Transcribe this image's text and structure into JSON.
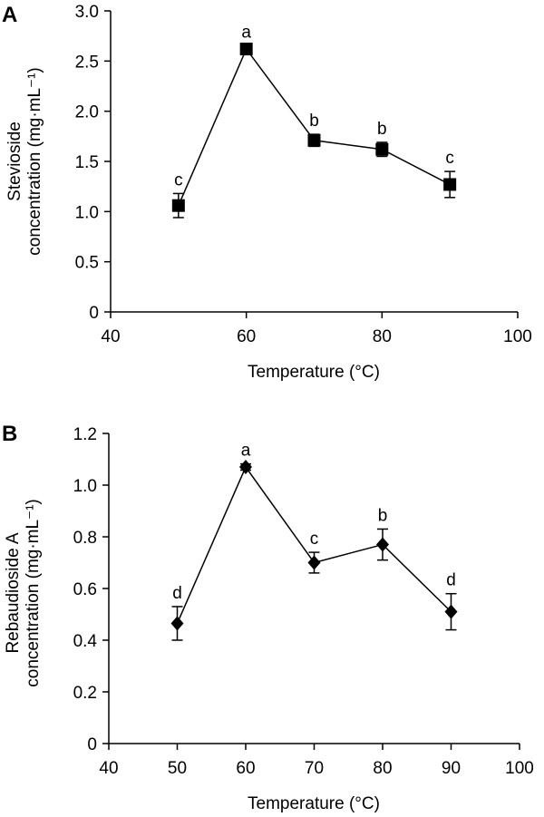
{
  "chart_data": [
    {
      "panel": "A",
      "type": "line",
      "marker": "square",
      "xlabel": "Temperature (°C)",
      "ylabel_lines": [
        "Stevioside",
        "concentration (mg·mL⁻¹)"
      ],
      "xlim": [
        40,
        100
      ],
      "ylim": [
        0,
        3.0
      ],
      "xticks": [
        40,
        60,
        80,
        100
      ],
      "xtick_labels": [
        "40",
        "60",
        "80",
        "100"
      ],
      "yticks": [
        0,
        0.5,
        1.0,
        1.5,
        2.0,
        2.5,
        3.0
      ],
      "ytick_labels": [
        "0",
        "0.5",
        "1.0",
        "1.5",
        "2.0",
        "2.5",
        "3.0"
      ],
      "grid": false,
      "series": [
        {
          "x": [
            50,
            60,
            70,
            80,
            90
          ],
          "y": [
            1.06,
            2.62,
            1.71,
            1.62,
            1.27
          ],
          "err": [
            0.12,
            0.03,
            0.06,
            0.07,
            0.13
          ],
          "labels": [
            "c",
            "a",
            "b",
            "b",
            "c"
          ]
        }
      ]
    },
    {
      "panel": "B",
      "type": "line",
      "marker": "diamond",
      "xlabel": "Temperature (°C)",
      "ylabel_lines": [
        "Rebaudioside A",
        "concentration (mg·mL⁻¹)"
      ],
      "xlim": [
        40,
        100
      ],
      "ylim": [
        0,
        1.2
      ],
      "xticks": [
        40,
        50,
        60,
        70,
        80,
        90,
        100
      ],
      "xtick_labels": [
        "40",
        "50",
        "60",
        "70",
        "80",
        "90",
        "100"
      ],
      "yticks": [
        0,
        0.2,
        0.4,
        0.6,
        0.8,
        1.0,
        1.2
      ],
      "ytick_labels": [
        "0",
        "0.2",
        "0.4",
        "0.6",
        "0.8",
        "1.0",
        "1.2"
      ],
      "grid": false,
      "series": [
        {
          "x": [
            50,
            60,
            70,
            80,
            90
          ],
          "y": [
            0.465,
            1.07,
            0.7,
            0.77,
            0.51
          ],
          "err": [
            0.065,
            0.012,
            0.04,
            0.06,
            0.07
          ],
          "labels": [
            "d",
            "a",
            "c",
            "b",
            "d"
          ]
        }
      ]
    }
  ]
}
